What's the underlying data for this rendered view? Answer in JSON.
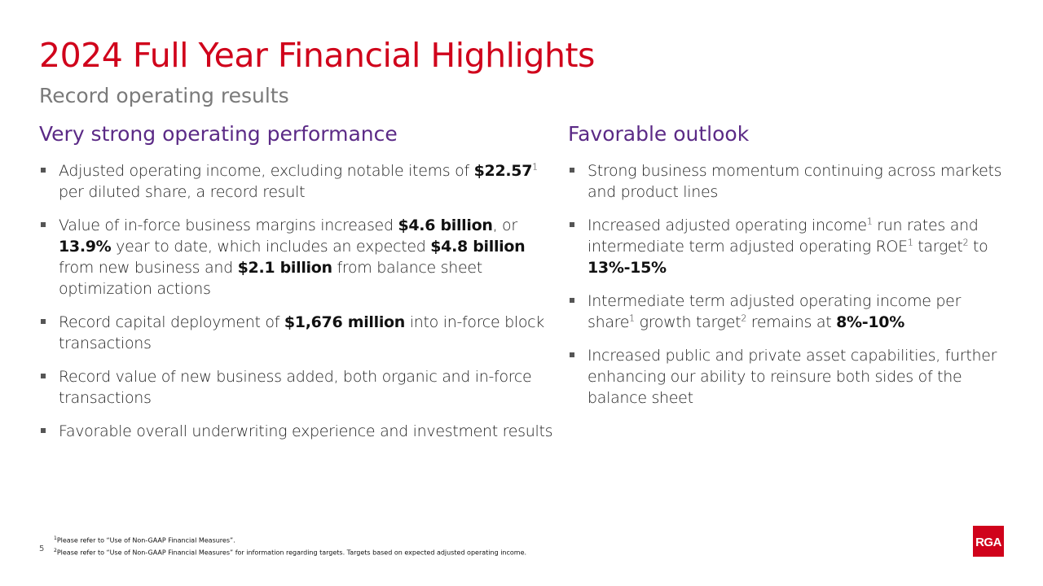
{
  "slide": {
    "title": "2024 Full Year Financial Highlights",
    "subtitle": "Record operating results",
    "page_number": "5",
    "accent_color": "#d0021b",
    "heading_color": "#5b2a86"
  },
  "left": {
    "heading": "Very strong operating performance",
    "bullets": [
      [
        {
          "t": "Adjusted operating income, excluding notable items of "
        },
        {
          "t": "$22.57",
          "b": true
        },
        {
          "t": "1",
          "sup": true
        },
        {
          "t": " per diluted share, a record result"
        }
      ],
      [
        {
          "t": "Value of in-force business margins increased "
        },
        {
          "t": "$4.6 billion",
          "b": true
        },
        {
          "t": ", or "
        },
        {
          "t": "13.9%",
          "b": true
        },
        {
          "t": " year to date, which includes an expected "
        },
        {
          "t": "$4.8 billion",
          "b": true
        },
        {
          "t": " from new business and "
        },
        {
          "t": "$2.1 billion",
          "b": true
        },
        {
          "t": " from balance sheet optimization actions"
        }
      ],
      [
        {
          "t": "Record capital deployment of "
        },
        {
          "t": "$1,676 million",
          "b": true
        },
        {
          "t": " into in-force block transactions"
        }
      ],
      [
        {
          "t": "Record value of new business added, both organic and in-force transactions"
        }
      ],
      [
        {
          "t": "Favorable overall underwriting experience and investment results"
        }
      ]
    ]
  },
  "right": {
    "heading": "Favorable outlook",
    "bullets": [
      [
        {
          "t": "Strong business momentum continuing across markets and product lines"
        }
      ],
      [
        {
          "t": "Increased adjusted operating income"
        },
        {
          "t": "1",
          "sup": true
        },
        {
          "t": " run rates and intermediate term adjusted operating ROE"
        },
        {
          "t": "1",
          "sup": true
        },
        {
          "t": " target"
        },
        {
          "t": "2",
          "sup": true
        },
        {
          "t": " to "
        },
        {
          "t": "13%-15%",
          "b": true
        }
      ],
      [
        {
          "t": "Intermediate term adjusted operating income per share"
        },
        {
          "t": "1",
          "sup": true
        },
        {
          "t": " growth target"
        },
        {
          "t": "2",
          "sup": true
        },
        {
          "t": " remains at "
        },
        {
          "t": "8%-10%",
          "b": true
        }
      ],
      [
        {
          "t": "Increased public and private asset capabilities, further enhancing our ability to reinsure both sides of the balance sheet"
        }
      ]
    ]
  },
  "footnotes": [
    {
      "num": "1",
      "text": "Please refer to “Use of Non-GAAP Financial Measures”."
    },
    {
      "num": "2",
      "text": "Please refer to “Use of Non-GAAP Financial Measures” for information regarding targets. Targets based on expected adjusted operating income."
    }
  ],
  "logo": {
    "text": "RGA",
    "icon": "rga-logo-icon"
  }
}
